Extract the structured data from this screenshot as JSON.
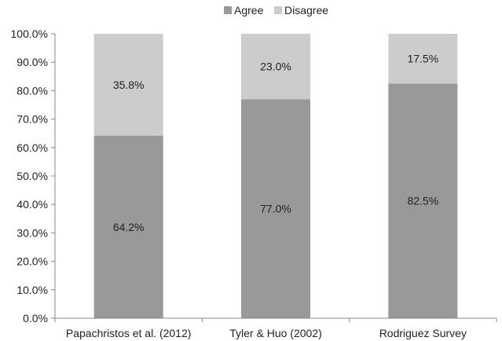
{
  "chart_data": {
    "type": "bar",
    "stacked": true,
    "categories": [
      "Papachristos et al. (2012)",
      "Tyler & Huo (2002)",
      "Rodriguez Survey"
    ],
    "series": [
      {
        "name": "Agree",
        "values": [
          64.2,
          77.0,
          82.5
        ],
        "labels": [
          "64.2%",
          "77.0%",
          "82.5%"
        ],
        "color": "#999999"
      },
      {
        "name": "Disagree",
        "values": [
          35.8,
          23.0,
          17.5
        ],
        "labels": [
          "35.8%",
          "23.0%",
          "17.5%"
        ],
        "color": "#cccccc"
      }
    ],
    "ylim": [
      0,
      100
    ],
    "yticks": [
      "0.0%",
      "10.0%",
      "20.0%",
      "30.0%",
      "40.0%",
      "50.0%",
      "60.0%",
      "70.0%",
      "80.0%",
      "90.0%",
      "100.0%"
    ],
    "grid": false,
    "legend": "top"
  }
}
